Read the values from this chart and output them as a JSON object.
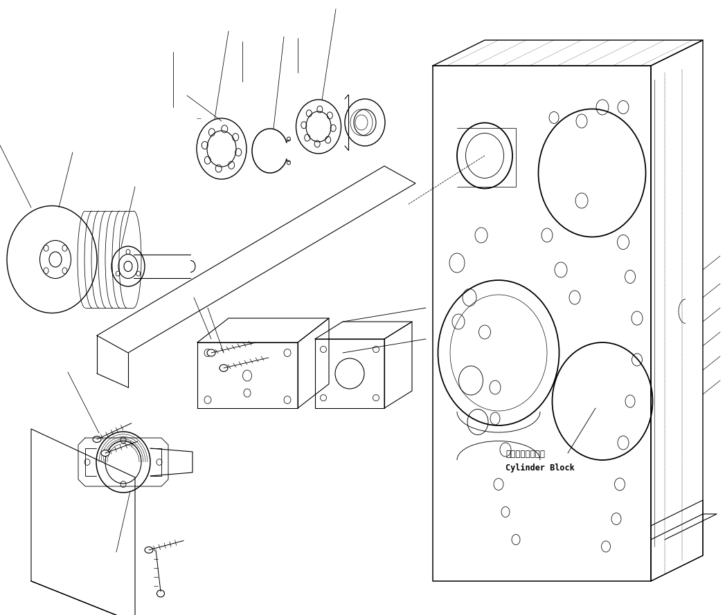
{
  "bg_color": "#ffffff",
  "line_color": "#000000",
  "lw": 0.8,
  "fig_width": 10.47,
  "fig_height": 8.89,
  "label_cylinder_block_jp": "シリンダブロック",
  "label_cylinder_block_en": "Cylinder Block"
}
